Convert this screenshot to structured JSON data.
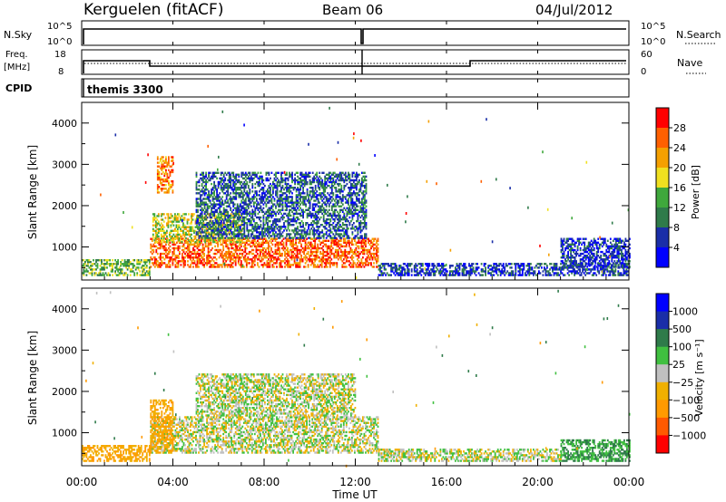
{
  "header": {
    "station": "Kerguelen (fitACF)",
    "beam": "Beam 06",
    "date": "04/Jul/2012"
  },
  "mini_panels": {
    "nsky": {
      "label": "N.Sky",
      "tick_top": "10^5",
      "tick_bot": "10^0",
      "right_label": "N.Search",
      "right_tick_top": "10^5",
      "right_tick_bot": "10^0"
    },
    "freq": {
      "label_line1": "Freq.",
      "label_line2": "[MHz]",
      "tick_top": "18",
      "tick_bot": "8",
      "right_label": "Nave",
      "right_tick_top": "60",
      "right_tick_bot": "0"
    },
    "cpid": {
      "label": "CPID",
      "value": "themis 3300"
    }
  },
  "colors": {
    "power": [
      "#0000ff",
      "#1a2ea8",
      "#2f7b4a",
      "#3fa83c",
      "#f0e020",
      "#f5a000",
      "#ff6000",
      "#ff0000"
    ],
    "velocity": [
      "#ff0000",
      "#ff5a00",
      "#ff9a00",
      "#f0b000",
      "#c0c0c0",
      "#40c040",
      "#2f7b4a",
      "#1a2ea8",
      "#0000ff"
    ]
  },
  "chart_data": [
    {
      "type": "heatmap",
      "name": "power-panel",
      "ylabel": "Slant Range [km]",
      "yticks": [
        "1000",
        "2000",
        "3000",
        "4000"
      ],
      "ylim": [
        200,
        4500
      ],
      "xlim": [
        0,
        24
      ],
      "colorbar": {
        "label": "Power [dB]",
        "ticks": [
          "4",
          "8",
          "12",
          "16",
          "20",
          "24",
          "28"
        ],
        "range": [
          0,
          32
        ]
      },
      "regions": [
        {
          "t0": 3.0,
          "t1": 13.0,
          "r0": 500,
          "r1": 1200,
          "v": 26
        },
        {
          "t0": 3.1,
          "t1": 7.0,
          "r0": 1100,
          "r1": 1800,
          "v": 18
        },
        {
          "t0": 3.3,
          "t1": 4.0,
          "r0": 2300,
          "r1": 3200,
          "v": 24
        },
        {
          "t0": 5.0,
          "t1": 12.5,
          "r0": 1200,
          "r1": 2800,
          "v": 8
        },
        {
          "t0": 0.0,
          "t1": 3.0,
          "r0": 300,
          "r1": 700,
          "v": 14
        },
        {
          "t0": 13.0,
          "t1": 24.0,
          "r0": 300,
          "r1": 600,
          "v": 6
        },
        {
          "t0": 21.0,
          "t1": 24.0,
          "r0": 500,
          "r1": 1200,
          "v": 5
        }
      ]
    },
    {
      "type": "heatmap",
      "name": "velocity-panel",
      "ylabel": "Slant Range [km]",
      "yticks": [
        "1000",
        "2000",
        "3000",
        "4000"
      ],
      "ylim": [
        200,
        4500
      ],
      "xlim": [
        0,
        24
      ],
      "xticks": [
        "00:00",
        "04:00",
        "08:00",
        "12:00",
        "16:00",
        "20:00",
        "00:00"
      ],
      "xlabel": "Time UT",
      "colorbar": {
        "label": "Velocity [m s⁻¹]",
        "ticks": [
          "1000",
          "500",
          "100",
          "25",
          "−25",
          "−100",
          "−500",
          "−1000"
        ]
      },
      "regions": [
        {
          "t0": 3.0,
          "t1": 13.0,
          "r0": 500,
          "r1": 1400,
          "v": 0
        },
        {
          "t0": 3.0,
          "t1": 4.0,
          "r0": 500,
          "r1": 1800,
          "v": -100
        },
        {
          "t0": 5.0,
          "t1": 12.0,
          "r0": 1400,
          "r1": 2400,
          "v": 0
        },
        {
          "t0": 0.0,
          "t1": 3.0,
          "r0": 300,
          "r1": 700,
          "v": -100
        },
        {
          "t0": 13.0,
          "t1": 21.0,
          "r0": 300,
          "r1": 600,
          "v": 0
        },
        {
          "t0": 21.0,
          "t1": 24.0,
          "r0": 300,
          "r1": 800,
          "v": 100
        }
      ]
    }
  ]
}
